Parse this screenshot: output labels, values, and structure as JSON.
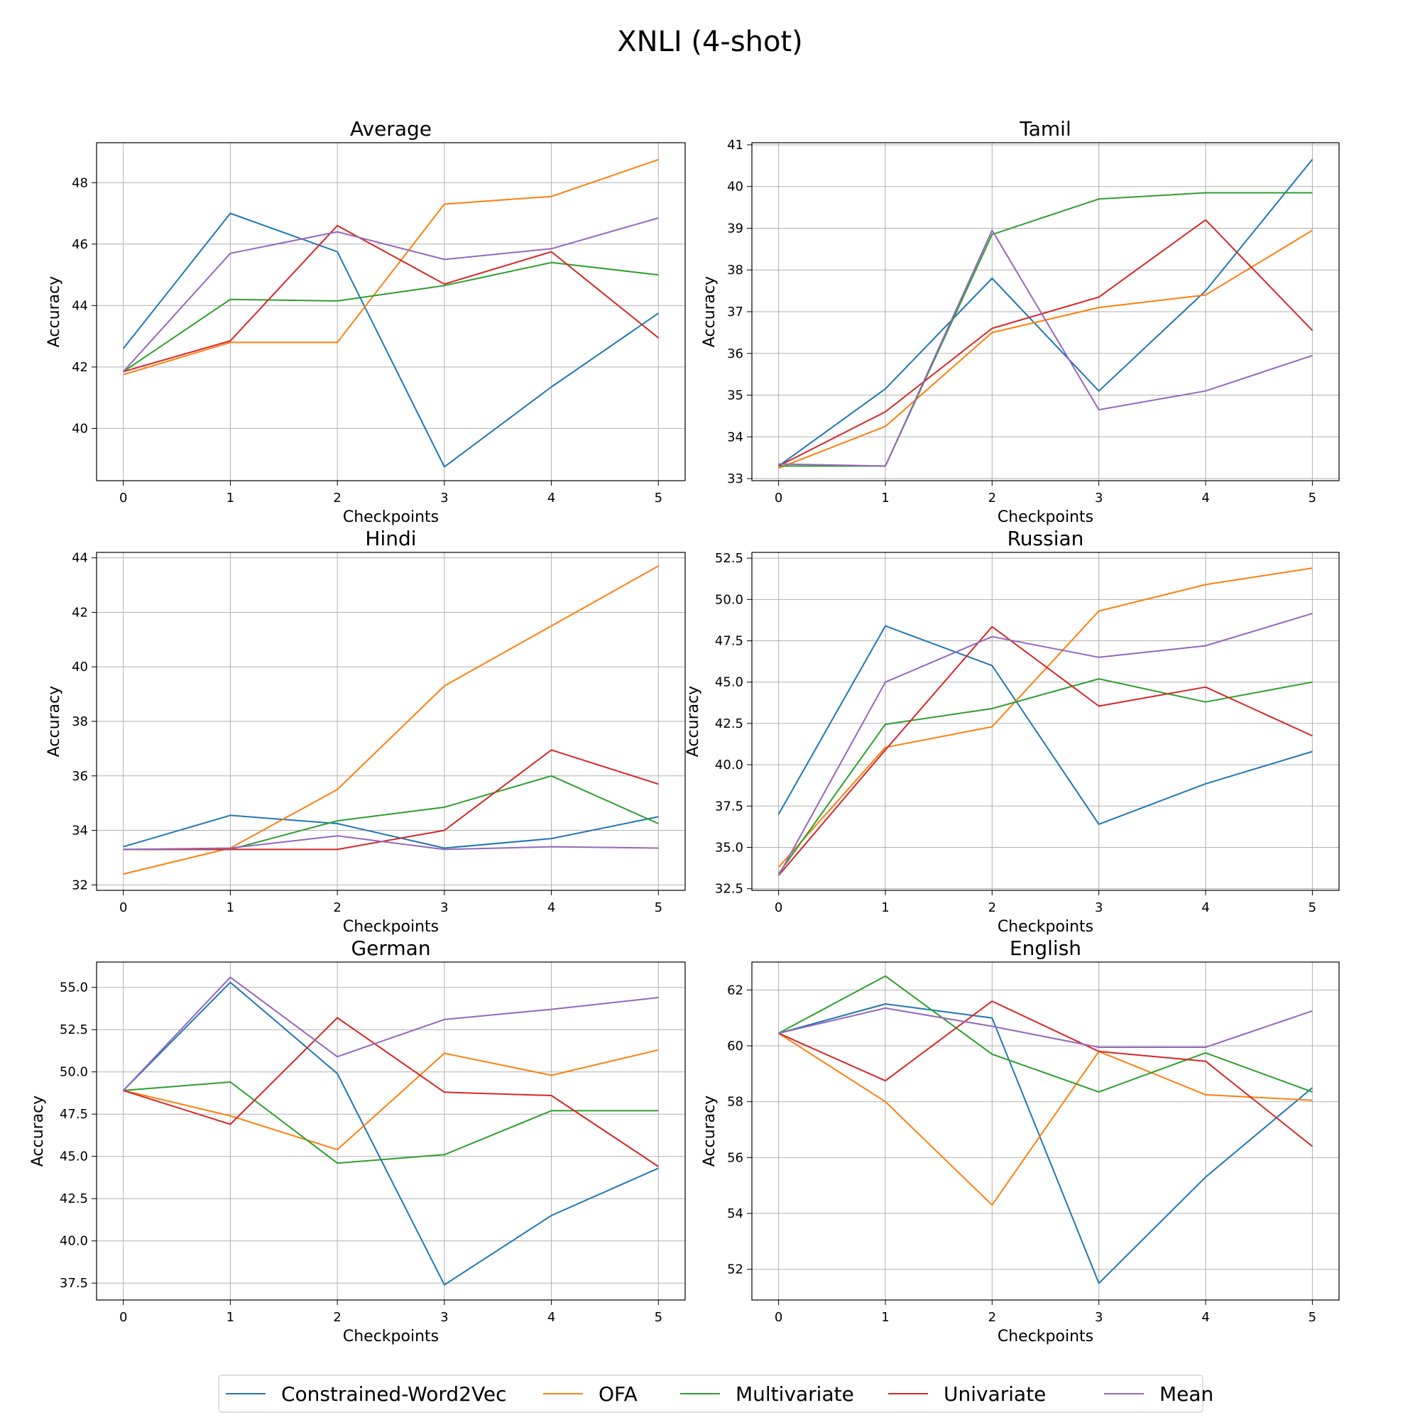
{
  "figure": {
    "title": "XNLI (4-shot)"
  },
  "legend": {
    "placement": "bottom-center",
    "entries": [
      {
        "name": "Constrained-Word2Vec",
        "color": "#1f77b4"
      },
      {
        "name": "OFA",
        "color": "#ff7f0e"
      },
      {
        "name": "Multivariate",
        "color": "#2ca02c"
      },
      {
        "name": "Univariate",
        "color": "#d62728"
      },
      {
        "name": "Mean",
        "color": "#9467bd"
      }
    ]
  },
  "chart_data": [
    {
      "type": "line",
      "title": "Average",
      "xlabel": "Checkpoints",
      "ylabel": "Accuracy",
      "x": [
        0,
        1,
        2,
        3,
        4,
        5
      ],
      "xlim": [
        -0.25,
        5.25
      ],
      "ylim": [
        38.3,
        49.3
      ],
      "yticks": [
        40,
        42,
        44,
        46,
        48
      ],
      "ytick_labels": [
        "40",
        "42",
        "44",
        "46",
        "48"
      ],
      "grid": true,
      "series": [
        {
          "name": "Constrained-Word2Vec",
          "values": [
            42.6,
            47.0,
            45.75,
            38.75,
            41.35,
            43.75
          ]
        },
        {
          "name": "OFA",
          "values": [
            41.75,
            42.8,
            42.8,
            47.3,
            47.55,
            48.75
          ]
        },
        {
          "name": "Multivariate",
          "values": [
            41.85,
            44.2,
            44.15,
            44.65,
            45.4,
            45.0
          ]
        },
        {
          "name": "Univariate",
          "values": [
            41.85,
            42.85,
            46.6,
            44.7,
            45.75,
            42.95
          ]
        },
        {
          "name": "Mean",
          "values": [
            41.85,
            45.7,
            46.4,
            45.5,
            45.85,
            46.85
          ]
        }
      ]
    },
    {
      "type": "line",
      "title": "Tamil",
      "xlabel": "Checkpoints",
      "ylabel": "Accuracy",
      "x": [
        0,
        1,
        2,
        3,
        4,
        5
      ],
      "xlim": [
        -0.25,
        5.25
      ],
      "ylim": [
        32.95,
        41.05
      ],
      "yticks": [
        33,
        34,
        35,
        36,
        37,
        38,
        39,
        40,
        41
      ],
      "ytick_labels": [
        "33",
        "34",
        "35",
        "36",
        "37",
        "38",
        "39",
        "40",
        "41"
      ],
      "grid": true,
      "series": [
        {
          "name": "Constrained-Word2Vec",
          "values": [
            33.3,
            35.15,
            37.8,
            35.1,
            37.5,
            40.65
          ]
        },
        {
          "name": "OFA",
          "values": [
            33.25,
            34.25,
            36.5,
            37.1,
            37.4,
            38.95
          ]
        },
        {
          "name": "Multivariate",
          "values": [
            33.3,
            33.3,
            38.85,
            39.7,
            39.85,
            39.85
          ]
        },
        {
          "name": "Univariate",
          "values": [
            33.3,
            34.6,
            36.6,
            37.35,
            39.2,
            36.55
          ]
        },
        {
          "name": "Mean",
          "values": [
            33.35,
            33.3,
            38.95,
            34.65,
            35.1,
            35.95
          ]
        }
      ]
    },
    {
      "type": "line",
      "title": "Hindi",
      "xlabel": "Checkpoints",
      "ylabel": "Accuracy",
      "x": [
        0,
        1,
        2,
        3,
        4,
        5
      ],
      "xlim": [
        -0.25,
        5.25
      ],
      "ylim": [
        31.8,
        44.2
      ],
      "yticks": [
        32,
        34,
        36,
        38,
        40,
        42,
        44
      ],
      "ytick_labels": [
        "32",
        "34",
        "36",
        "38",
        "40",
        "42",
        "44"
      ],
      "grid": true,
      "series": [
        {
          "name": "Constrained-Word2Vec",
          "values": [
            33.4,
            34.55,
            34.25,
            33.35,
            33.7,
            34.5
          ]
        },
        {
          "name": "OFA",
          "values": [
            32.4,
            33.35,
            35.5,
            39.3,
            41.5,
            43.7
          ]
        },
        {
          "name": "Multivariate",
          "values": [
            33.3,
            33.3,
            34.35,
            34.85,
            36.0,
            34.25
          ]
        },
        {
          "name": "Univariate",
          "values": [
            33.3,
            33.3,
            33.3,
            34.0,
            36.95,
            35.7
          ]
        },
        {
          "name": "Mean",
          "values": [
            33.3,
            33.35,
            33.8,
            33.3,
            33.4,
            33.35
          ]
        }
      ]
    },
    {
      "type": "line",
      "title": "Russian",
      "xlabel": "Checkpoints",
      "ylabel": "Accuracy",
      "x": [
        0,
        1,
        2,
        3,
        4,
        5
      ],
      "xlim": [
        -0.25,
        5.25
      ],
      "ylim": [
        32.4,
        52.85
      ],
      "yticks": [
        32.5,
        35.0,
        37.5,
        40.0,
        42.5,
        45.0,
        47.5,
        50.0,
        52.5
      ],
      "ytick_labels": [
        "32.5",
        "35.0",
        "37.5",
        "40.0",
        "42.5",
        "45.0",
        "47.5",
        "50.0",
        "52.5"
      ],
      "grid": true,
      "series": [
        {
          "name": "Constrained-Word2Vec",
          "values": [
            37.0,
            48.4,
            46.0,
            36.4,
            38.85,
            40.8
          ]
        },
        {
          "name": "OFA",
          "values": [
            33.8,
            41.05,
            42.3,
            49.3,
            50.9,
            51.9
          ]
        },
        {
          "name": "Multivariate",
          "values": [
            33.4,
            42.45,
            43.4,
            45.2,
            43.8,
            45.0
          ]
        },
        {
          "name": "Univariate",
          "values": [
            33.3,
            40.9,
            48.35,
            43.55,
            44.7,
            41.75
          ]
        },
        {
          "name": "Mean",
          "values": [
            33.3,
            45.0,
            47.75,
            46.5,
            47.2,
            49.15
          ]
        }
      ]
    },
    {
      "type": "line",
      "title": "German",
      "xlabel": "Checkpoints",
      "ylabel": "Accuracy",
      "x": [
        0,
        1,
        2,
        3,
        4,
        5
      ],
      "xlim": [
        -0.25,
        5.25
      ],
      "ylim": [
        36.5,
        56.5
      ],
      "yticks": [
        37.5,
        40.0,
        42.5,
        45.0,
        47.5,
        50.0,
        52.5,
        55.0
      ],
      "ytick_labels": [
        "37.5",
        "40.0",
        "42.5",
        "45.0",
        "47.5",
        "50.0",
        "52.5",
        "55.0"
      ],
      "grid": true,
      "series": [
        {
          "name": "Constrained-Word2Vec",
          "values": [
            48.9,
            55.3,
            49.9,
            37.4,
            41.5,
            44.3
          ]
        },
        {
          "name": "OFA",
          "values": [
            48.9,
            47.4,
            45.4,
            51.1,
            49.8,
            51.3
          ]
        },
        {
          "name": "Multivariate",
          "values": [
            48.9,
            49.4,
            44.6,
            45.1,
            47.7,
            47.7
          ]
        },
        {
          "name": "Univariate",
          "values": [
            48.9,
            46.9,
            53.2,
            48.8,
            48.6,
            44.4
          ]
        },
        {
          "name": "Mean",
          "values": [
            48.9,
            55.6,
            50.9,
            53.1,
            53.7,
            54.4
          ]
        }
      ]
    },
    {
      "type": "line",
      "title": "English",
      "xlabel": "Checkpoints",
      "ylabel": "Accuracy",
      "x": [
        0,
        1,
        2,
        3,
        4,
        5
      ],
      "xlim": [
        -0.25,
        5.25
      ],
      "ylim": [
        50.9,
        63.0
      ],
      "yticks": [
        52,
        54,
        56,
        58,
        60,
        62
      ],
      "ytick_labels": [
        "52",
        "54",
        "56",
        "58",
        "60",
        "62"
      ],
      "grid": true,
      "series": [
        {
          "name": "Constrained-Word2Vec",
          "values": [
            60.45,
            61.5,
            61.0,
            51.5,
            55.3,
            58.5
          ]
        },
        {
          "name": "OFA",
          "values": [
            60.45,
            58.0,
            54.3,
            59.8,
            58.25,
            58.05
          ]
        },
        {
          "name": "Multivariate",
          "values": [
            60.45,
            62.5,
            59.7,
            58.35,
            59.75,
            58.35
          ]
        },
        {
          "name": "Univariate",
          "values": [
            60.45,
            58.75,
            61.6,
            59.8,
            59.45,
            56.4
          ]
        },
        {
          "name": "Mean",
          "values": [
            60.45,
            61.35,
            60.7,
            59.95,
            59.95,
            61.25
          ]
        }
      ]
    }
  ]
}
